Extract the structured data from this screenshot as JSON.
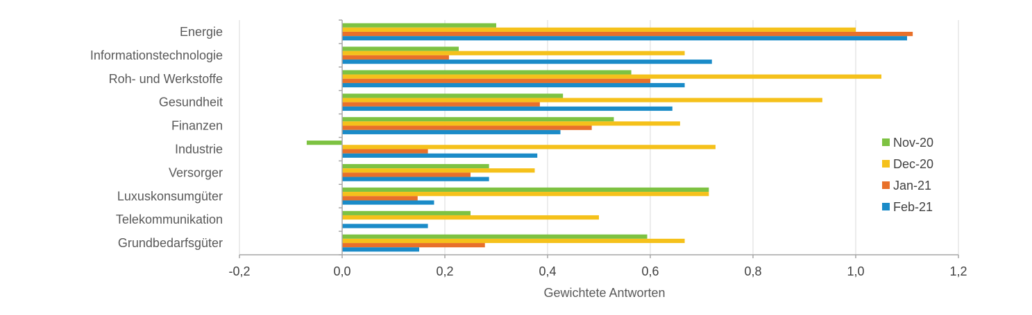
{
  "chart_data": {
    "type": "bar",
    "orientation": "horizontal",
    "categories": [
      "Energie",
      "Informationstechnologie",
      "Roh- und Werkstoffe",
      "Gesundheit",
      "Finanzen",
      "Industrie",
      "Versorger",
      "Luxuskonsumgüter",
      "Telekommunikation",
      "Grundbedarfsgüter"
    ],
    "series": [
      {
        "name": "Nov-20",
        "color": "#7dc242",
        "values": [
          0.3,
          0.227,
          0.563,
          0.43,
          0.529,
          -0.069,
          0.286,
          0.714,
          0.25,
          0.594
        ]
      },
      {
        "name": "Dec-20",
        "color": "#f5c11b",
        "values": [
          1.0,
          0.667,
          1.05,
          0.935,
          0.658,
          0.727,
          0.375,
          0.714,
          0.5,
          0.667
        ]
      },
      {
        "name": "Jan-21",
        "color": "#e8702a",
        "values": [
          1.111,
          0.208,
          0.6,
          0.385,
          0.486,
          0.167,
          0.25,
          0.147,
          0.0,
          0.278
        ]
      },
      {
        "name": "Feb-21",
        "color": "#1a8bc8",
        "values": [
          1.1,
          0.72,
          0.667,
          0.643,
          0.425,
          0.38,
          0.286,
          0.179,
          0.167,
          0.15
        ]
      }
    ],
    "xlim": [
      -0.2,
      1.2
    ],
    "xticks": [
      -0.2,
      0.0,
      0.2,
      0.4,
      0.6,
      0.8,
      1.0,
      1.2
    ],
    "xtick_labels": [
      "-0,2",
      "0,0",
      "0,2",
      "0,4",
      "0,6",
      "0,8",
      "1,0",
      "1,2"
    ],
    "xlabel": "Gewichtete Antworten",
    "ylabel": "",
    "title": "",
    "grid": true,
    "legend_position": "right"
  }
}
